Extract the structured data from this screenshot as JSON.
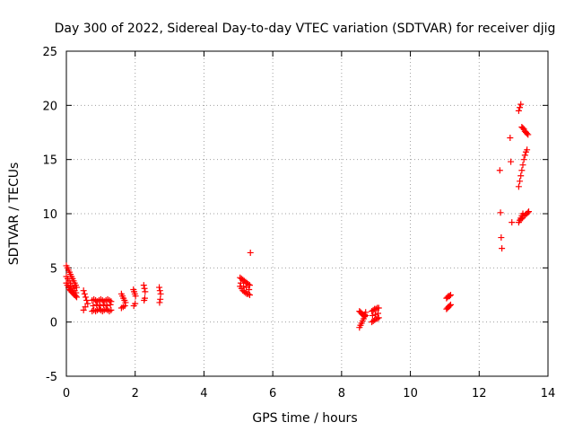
{
  "chart_data": {
    "type": "scatter",
    "title": "Day 300 of 2022, Sidereal Day-to-day VTEC variation (SDTVAR) for receiver djig",
    "xlabel": "GPS time / hours",
    "ylabel": "SDTVAR / TECUs",
    "xlim": [
      0,
      14
    ],
    "ylim": [
      -5,
      25
    ],
    "xticks": [
      "0",
      "2",
      "4",
      "6",
      "8",
      "10",
      "12",
      "14"
    ],
    "yticks": [
      "-5",
      "0",
      "5",
      "10",
      "15",
      "20",
      "25"
    ],
    "grid": true,
    "marker": "plus",
    "color": "#ff0000",
    "series": [
      {
        "x": [
          0.0,
          0.03,
          0.06,
          0.09,
          0.12,
          0.15,
          0.18,
          0.21,
          0.24,
          0.27,
          0.3,
          0.0,
          0.03,
          0.06,
          0.09,
          0.12,
          0.15,
          0.18,
          0.21,
          0.24,
          0.27,
          0.3,
          0.0,
          0.04,
          0.08,
          0.12,
          0.16,
          0.2,
          0.24,
          0.28,
          0.5,
          0.53,
          0.56,
          0.59,
          0.62,
          0.5,
          0.55,
          0.75,
          0.8,
          0.85,
          0.9,
          0.95,
          1.0,
          1.05,
          1.1,
          1.15,
          1.2,
          1.25,
          1.3,
          0.75,
          0.8,
          0.85,
          0.9,
          0.95,
          1.0,
          1.05,
          1.1,
          1.15,
          1.2,
          1.25,
          1.3,
          0.78,
          0.88,
          0.98,
          1.08,
          1.18,
          1.28,
          1.6,
          1.63,
          1.66,
          1.69,
          1.72,
          1.6,
          1.65,
          1.7,
          1.95,
          1.97,
          1.99,
          2.01,
          1.96,
          2.0,
          2.25,
          2.27,
          2.29,
          2.26,
          2.28,
          2.7,
          2.72,
          2.74,
          2.71,
          2.73,
          5.05,
          5.09,
          5.13,
          5.17,
          5.21,
          5.25,
          5.29,
          5.33,
          5.05,
          5.09,
          5.13,
          5.17,
          5.21,
          5.25,
          5.29,
          5.33,
          5.07,
          5.15,
          5.23,
          5.31,
          5.35,
          8.52,
          8.55,
          8.58,
          8.61,
          8.64,
          8.67,
          8.7,
          8.52,
          8.55,
          8.58,
          8.61,
          8.64,
          8.67,
          8.7,
          8.88,
          8.92,
          8.96,
          9.0,
          9.04,
          9.08,
          8.88,
          8.92,
          8.96,
          9.0,
          9.04,
          9.08,
          8.9,
          8.98,
          9.06,
          11.05,
          11.08,
          11.11,
          11.14,
          11.17,
          11.05,
          11.08,
          11.11,
          11.14,
          11.17,
          12.6,
          12.62,
          12.64,
          12.66,
          12.9,
          12.92,
          12.95,
          13.15,
          13.18,
          13.21,
          13.24,
          13.27,
          13.3,
          13.33,
          13.36,
          13.39,
          13.42,
          13.15,
          13.18,
          13.21,
          13.24,
          13.27,
          13.3,
          13.33,
          13.36,
          13.39,
          13.15,
          13.18,
          13.21,
          13.24,
          13.27,
          13.22,
          13.26,
          13.3,
          13.34,
          13.38,
          13.42,
          13.44
        ],
        "y": [
          5.2,
          5.0,
          4.8,
          4.6,
          4.4,
          4.2,
          4.0,
          3.8,
          3.6,
          3.4,
          3.2,
          3.6,
          3.4,
          3.2,
          3.0,
          2.9,
          2.8,
          2.7,
          2.6,
          2.5,
          2.4,
          2.3,
          4.2,
          4.0,
          3.8,
          3.6,
          3.3,
          3.1,
          2.9,
          2.7,
          2.9,
          2.6,
          2.3,
          2.0,
          1.7,
          1.1,
          1.4,
          2.0,
          2.1,
          2.0,
          1.9,
          2.0,
          2.1,
          2.0,
          1.9,
          2.0,
          2.1,
          2.0,
          1.9,
          1.0,
          1.1,
          1.0,
          1.1,
          1.2,
          1.1,
          1.0,
          1.1,
          1.2,
          1.1,
          1.0,
          1.1,
          1.5,
          1.6,
          1.5,
          1.6,
          1.5,
          1.6,
          2.6,
          2.4,
          2.2,
          2.0,
          1.8,
          1.3,
          1.4,
          1.5,
          3.0,
          2.8,
          2.6,
          2.4,
          1.5,
          1.7,
          3.4,
          3.1,
          2.8,
          2.0,
          2.2,
          3.2,
          2.9,
          2.6,
          1.8,
          2.1,
          4.1,
          4.0,
          3.9,
          3.8,
          3.7,
          3.6,
          3.5,
          3.4,
          3.3,
          3.1,
          2.9,
          2.8,
          2.7,
          2.6,
          2.6,
          2.5,
          3.6,
          3.3,
          3.2,
          3.0,
          6.4,
          -0.5,
          -0.3,
          -0.1,
          0.1,
          0.3,
          0.5,
          0.6,
          1.0,
          0.9,
          0.8,
          0.7,
          0.6,
          0.7,
          0.9,
          0.0,
          0.1,
          0.2,
          0.3,
          0.3,
          0.4,
          1.0,
          1.1,
          1.2,
          1.2,
          1.3,
          1.3,
          0.6,
          0.7,
          0.8,
          2.2,
          2.3,
          2.4,
          2.4,
          2.5,
          1.2,
          1.3,
          1.4,
          1.5,
          1.6,
          14.0,
          10.1,
          7.8,
          6.8,
          17.0,
          14.8,
          9.2,
          19.5,
          19.8,
          20.1,
          18.0,
          17.9,
          17.8,
          17.6,
          17.5,
          17.4,
          17.3,
          12.5,
          13.0,
          13.5,
          14.0,
          14.5,
          15.0,
          15.4,
          15.7,
          15.9,
          9.2,
          9.4,
          9.6,
          9.8,
          10.0,
          9.5,
          9.6,
          9.8,
          9.9,
          10.0,
          10.1,
          10.2
        ]
      }
    ]
  }
}
